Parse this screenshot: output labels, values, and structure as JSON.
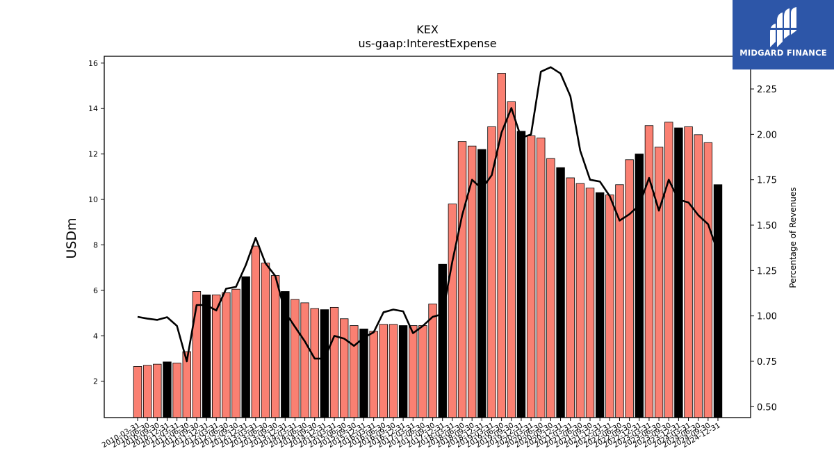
{
  "chart_data": {
    "type": "bar",
    "title": "KEX",
    "subtitle": "us-gaap:InterestExpense",
    "ylabel": "USDm",
    "y2label": "Percentage of Revenues",
    "ylim": [
      0.4,
      16.3
    ],
    "y2lim": [
      0.44,
      2.43
    ],
    "yticks": [
      2,
      4,
      6,
      8,
      10,
      12,
      14,
      16
    ],
    "y2ticks": [
      "0.50",
      "0.75",
      "1.00",
      "1.25",
      "1.50",
      "1.75",
      "2.00",
      "2.25"
    ],
    "grid": false,
    "bar_colors": {
      "quarter": "#fa8072",
      "year_end": "#000000",
      "line": "#000000"
    },
    "categories": [
      "2010-03-31",
      "2010-06-30",
      "2010-09-30",
      "2010-12-31",
      "2011-03-31",
      "2011-06-30",
      "2011-09-30",
      "2011-12-31",
      "2012-03-31",
      "2012-06-30",
      "2012-09-30",
      "2012-12-31",
      "2013-03-31",
      "2013-06-30",
      "2013-09-30",
      "2013-12-31",
      "2014-03-31",
      "2014-06-30",
      "2014-09-30",
      "2014-12-31",
      "2015-03-31",
      "2015-06-30",
      "2015-09-30",
      "2015-12-31",
      "2016-03-31",
      "2016-06-30",
      "2016-09-30",
      "2016-12-31",
      "2017-03-31",
      "2017-06-30",
      "2017-09-30",
      "2017-12-31",
      "2018-03-31",
      "2018-06-30",
      "2018-09-30",
      "2018-12-31",
      "2019-03-31",
      "2019-06-30",
      "2019-09-30",
      "2019-12-31",
      "2020-03-31",
      "2020-06-30",
      "2020-09-30",
      "2020-12-31",
      "2021-03-31",
      "2021-06-30",
      "2021-09-30",
      "2021-12-31",
      "2022-03-31",
      "2022-06-30",
      "2022-09-30",
      "2022-12-31",
      "2023-03-31",
      "2023-06-30",
      "2023-09-30",
      "2023-12-31",
      "2024-03-31",
      "2024-06-30",
      "2024-09-30",
      "2024-12-31"
    ],
    "series": [
      {
        "values": [
          2.65,
          2.7,
          2.75,
          2.85,
          2.8,
          3.3,
          5.95,
          5.8,
          5.8,
          5.9,
          6.05,
          6.6,
          7.95,
          7.2,
          6.65,
          5.95,
          5.6,
          5.45,
          5.2,
          5.15,
          5.25,
          4.75,
          4.45,
          4.3,
          4.2,
          4.5,
          4.5,
          4.45,
          4.45,
          4.45,
          5.4,
          7.15,
          9.8,
          12.55,
          12.35,
          12.2,
          13.2,
          15.55,
          14.3,
          13.0,
          12.8,
          12.7,
          11.8,
          11.4,
          10.95,
          10.7,
          10.5,
          10.3,
          10.2,
          10.65,
          11.75,
          12.0,
          13.25,
          12.3,
          13.4,
          13.15,
          13.2,
          12.85,
          12.5,
          10.65
        ],
        "year_end": [
          false,
          false,
          false,
          true,
          false,
          false,
          false,
          true,
          false,
          false,
          false,
          true,
          false,
          false,
          false,
          true,
          false,
          false,
          false,
          true,
          false,
          false,
          false,
          true,
          false,
          false,
          false,
          true,
          false,
          false,
          false,
          true,
          false,
          false,
          false,
          true,
          false,
          false,
          false,
          true,
          false,
          false,
          false,
          true,
          false,
          false,
          false,
          true,
          false,
          false,
          false,
          true,
          false,
          false,
          false,
          true,
          false,
          false,
          false,
          true
        ]
      },
      {
        "axis": "right",
        "type": "line",
        "values": [
          0.995,
          0.985,
          0.978,
          0.993,
          0.945,
          0.75,
          1.06,
          1.06,
          1.03,
          1.15,
          1.16,
          1.28,
          1.43,
          1.29,
          1.22,
          1.02,
          0.94,
          0.86,
          0.765,
          0.765,
          0.89,
          0.875,
          0.835,
          0.88,
          0.91,
          1.02,
          1.035,
          1.025,
          0.905,
          0.945,
          0.995,
          1.01,
          1.3,
          1.555,
          1.75,
          1.7,
          1.775,
          2.01,
          2.145,
          1.98,
          2.0,
          2.345,
          2.37,
          2.335,
          2.21,
          1.91,
          1.75,
          1.74,
          1.66,
          1.525,
          1.56,
          1.61,
          1.76,
          1.58,
          1.75,
          1.64,
          1.625,
          1.555,
          1.505,
          1.35
        ]
      }
    ]
  },
  "logo": {
    "text": "MIDGARD FINANCE"
  }
}
